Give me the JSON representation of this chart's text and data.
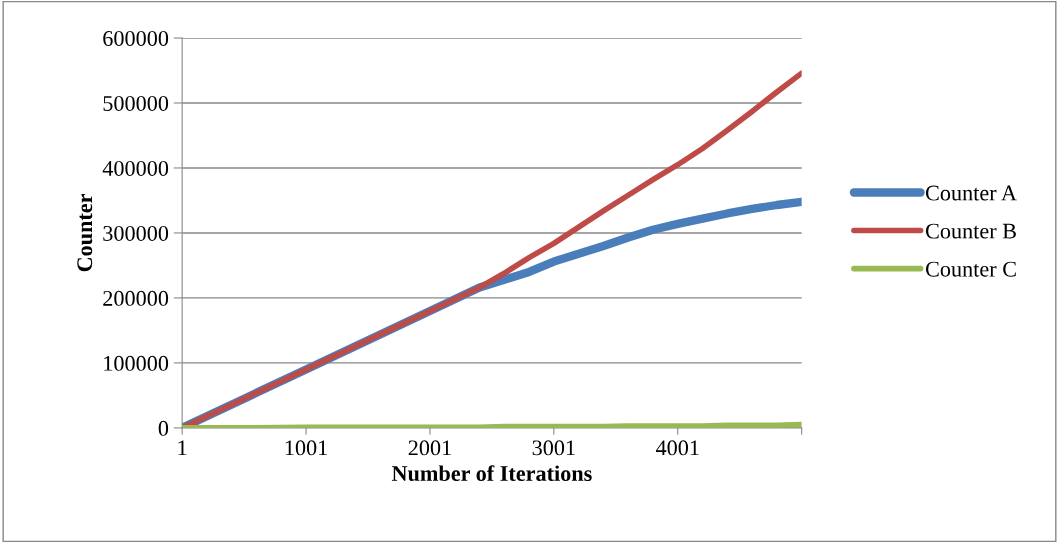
{
  "chart_data": {
    "type": "line",
    "xlabel": "Number of Iterations",
    "ylabel": "Counter",
    "x": [
      1,
      501,
      1001,
      1501,
      2001,
      2401,
      2601,
      2801,
      3001,
      3201,
      3401,
      3601,
      3801,
      4001,
      4201,
      4401,
      4601,
      4801,
      5001
    ],
    "series": [
      {
        "name": "Counter A",
        "color": "#4a7ebb",
        "values": [
          0,
          45000,
          90000,
          135000,
          180000,
          216000,
          228000,
          240000,
          256000,
          268000,
          280000,
          293000,
          305000,
          314000,
          322000,
          330000,
          337000,
          343000,
          348000
        ]
      },
      {
        "name": "Counter B",
        "color": "#be4b48",
        "values": [
          0,
          45000,
          90000,
          135000,
          180000,
          216000,
          238000,
          262000,
          284000,
          309000,
          334000,
          358000,
          382000,
          405000,
          430000,
          458000,
          487000,
          517000,
          546000
        ]
      },
      {
        "name": "Counter C",
        "color": "#98b954",
        "values": [
          0,
          0,
          1000,
          1000,
          1000,
          1000,
          2000,
          2000,
          2000,
          2000,
          2000,
          3000,
          3000,
          3000,
          3000,
          4000,
          4000,
          4000,
          5000
        ]
      }
    ],
    "xlim": [
      1,
      5001
    ],
    "xticks": [
      1,
      1001,
      2001,
      3001,
      4001,
      {
        "value": 5001,
        "label": null
      }
    ],
    "ylim": [
      0,
      600000
    ],
    "yticks": [
      0,
      100000,
      200000,
      300000,
      400000,
      500000,
      600000
    ],
    "grid": "y",
    "legend": "right",
    "marker": "none",
    "line_style": "solid"
  }
}
